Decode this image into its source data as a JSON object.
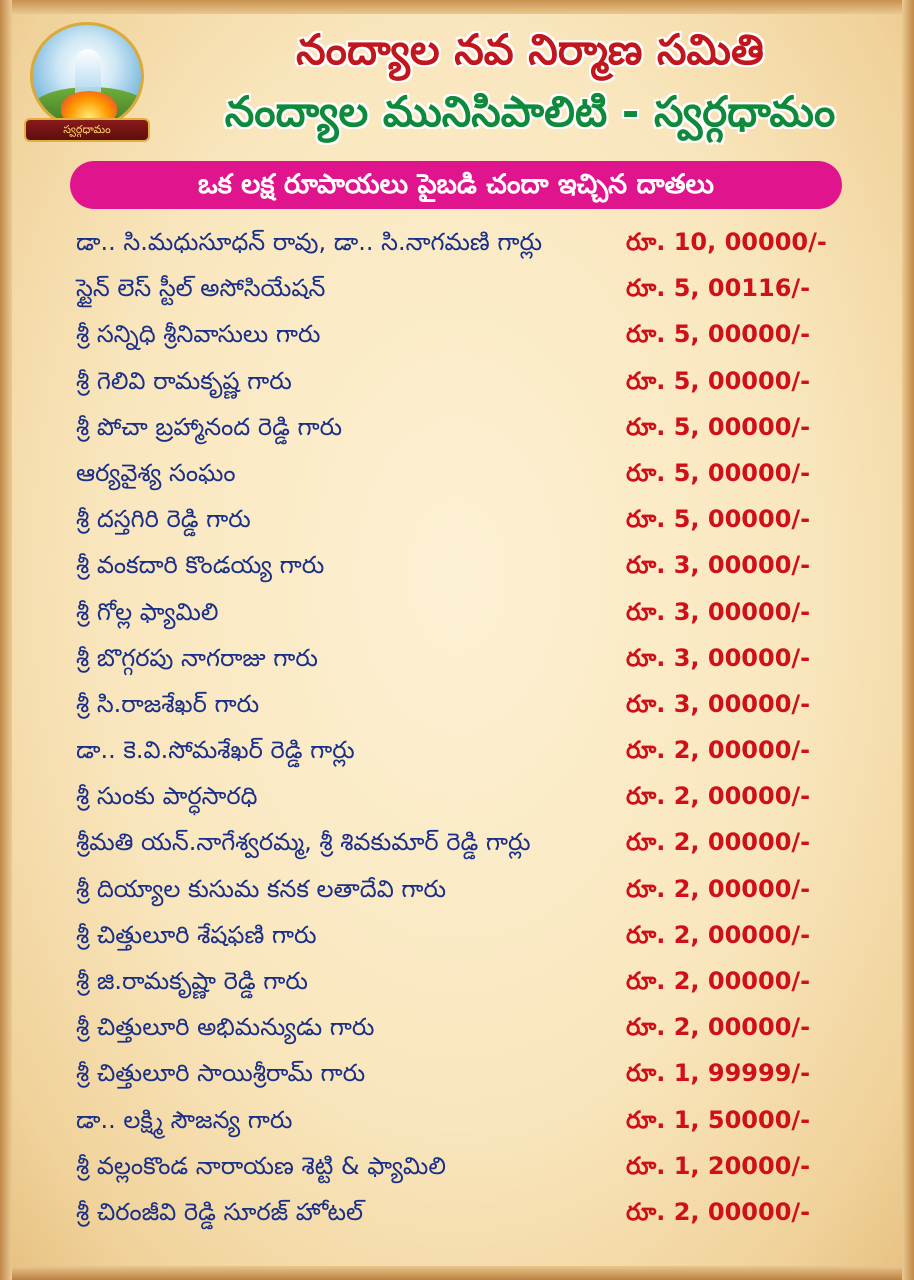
{
  "logo": {
    "caption": "స్వర్గధామం",
    "icon": "meditation-heaven-logo-icon"
  },
  "header": {
    "title": "నంద్యాల నవ నిర్మాణ సమితి",
    "subtitle": "నంద్యాల మునిసిపాలిటి - స్వర్గధామం",
    "banner": "ఒక లక్ష రూపాయలు పైబడి చందా ఇచ్చిన దాతలు"
  },
  "colors": {
    "title": "#c0161c",
    "subtitle": "#0f8a3a",
    "banner": "#e0158e",
    "name_text": "#1a2f88",
    "amount_text": "#d01018"
  },
  "donors": [
    {
      "name": "డా.. సి.మధుసూధన్ రావు, డా.. సి.నాగమణి గార్లు",
      "amount": "రూ. 10, 00000/-"
    },
    {
      "name": "స్టైన్ లెస్ స్టీల్ అసోసియేషన్",
      "amount": "రూ. 5, 00116/-"
    },
    {
      "name": "శ్రీ సన్నిధి శ్రీనివాసులు గారు",
      "amount": "రూ. 5, 00000/-"
    },
    {
      "name": "శ్రీ గెలివి రామకృష్ణ గారు",
      "amount": "రూ. 5, 00000/-"
    },
    {
      "name": "శ్రీ పోచా బ్రహ్మానంద రెడ్డి గారు",
      "amount": "రూ. 5, 00000/-"
    },
    {
      "name": "ఆర్యవైశ్య సంఘం",
      "amount": "రూ. 5, 00000/-"
    },
    {
      "name": "శ్రీ దస్తగిరి రెడ్డి గారు",
      "amount": "రూ. 5, 00000/-"
    },
    {
      "name": "శ్రీ వంకదారి కొండయ్య గారు",
      "amount": "రూ. 3, 00000/-"
    },
    {
      "name": "శ్రీ గోల్ల ఫ్యామిలి",
      "amount": "రూ. 3, 00000/-"
    },
    {
      "name": "శ్రీ బొగ్గరపు నాగరాజు గారు",
      "amount": "రూ. 3, 00000/-"
    },
    {
      "name": "శ్రీ సి.రాజశేఖర్ గారు",
      "amount": "రూ. 3, 00000/-"
    },
    {
      "name": "డా.. కె.వి.సోమశేఖర్ రెడ్డి గార్లు",
      "amount": "రూ. 2, 00000/-"
    },
    {
      "name": "శ్రీ సుంకు పార్ధసారధి",
      "amount": "రూ. 2, 00000/-"
    },
    {
      "name": "శ్రీమతి యన్.నాగేశ్వరమ్మ, శ్రీ శివకుమార్ రెడ్డి గార్లు",
      "amount": "రూ. 2, 00000/-"
    },
    {
      "name": "శ్రీ దియ్యాల కుసుమ కనక లతాదేవి గారు",
      "amount": "రూ. 2, 00000/-"
    },
    {
      "name": "శ్రీ చిత్తులూరి శేషఫణి గారు",
      "amount": "రూ. 2, 00000/-"
    },
    {
      "name": "శ్రీ జి.రామకృష్ణా రెడ్డి గారు",
      "amount": "రూ. 2, 00000/-"
    },
    {
      "name": "శ్రీ చిత్తులూరి అభిమన్యుడు గారు",
      "amount": "రూ. 2, 00000/-"
    },
    {
      "name": "శ్రీ చిత్తులూరి సాయిశ్రీరామ్ గారు",
      "amount": "రూ. 1, 99999/-"
    },
    {
      "name": "డా.. లక్ష్మి సౌజన్య గారు",
      "amount": "రూ. 1, 50000/-"
    },
    {
      "name": "శ్రీ వల్లంకొండ నారాయణ శెట్టి & ఫ్యామిలి",
      "amount": "రూ. 1, 20000/-"
    },
    {
      "name": "శ్రీ చిరంజీవి రెడ్డి సూరజ్ హోటల్",
      "amount": "రూ. 2, 00000/-"
    }
  ]
}
